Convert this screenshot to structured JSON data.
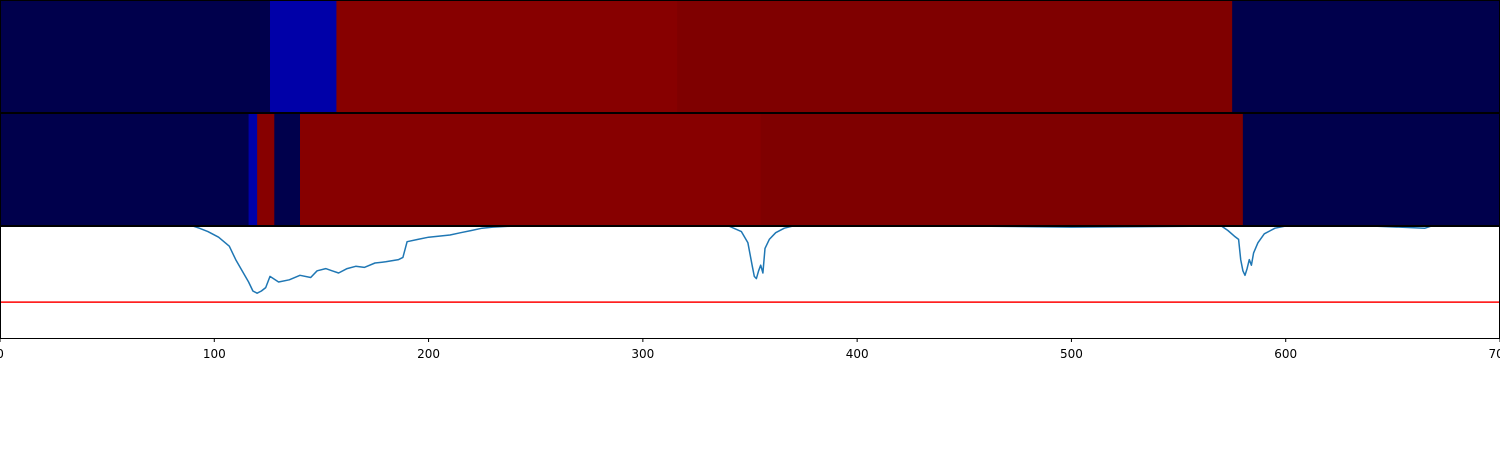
{
  "chart_data": [
    {
      "type": "heatmap",
      "x_range": [
        0,
        700
      ],
      "segments": [
        {
          "start": 0,
          "end": 126,
          "color": "#00004c"
        },
        {
          "start": 126,
          "end": 157,
          "color": "#0000a8"
        },
        {
          "start": 157,
          "end": 316,
          "color": "#870000"
        },
        {
          "start": 316,
          "end": 575,
          "color": "#7f0000"
        },
        {
          "start": 575,
          "end": 700,
          "color": "#00004c"
        }
      ]
    },
    {
      "type": "heatmap",
      "x_range": [
        0,
        700
      ],
      "segments": [
        {
          "start": 0,
          "end": 116,
          "color": "#00004c"
        },
        {
          "start": 116,
          "end": 120,
          "color": "#0000a8"
        },
        {
          "start": 120,
          "end": 128,
          "color": "#870000"
        },
        {
          "start": 128,
          "end": 140,
          "color": "#00004c"
        },
        {
          "start": 140,
          "end": 355,
          "color": "#870000"
        },
        {
          "start": 355,
          "end": 580,
          "color": "#7f0000"
        },
        {
          "start": 580,
          "end": 700,
          "color": "#00004c"
        }
      ]
    },
    {
      "type": "line",
      "xlim": [
        0,
        700
      ],
      "ylim": [
        -1.0,
        0.0
      ],
      "x_ticks": [
        0,
        100,
        200,
        300,
        400,
        500,
        600,
        700
      ],
      "series": [
        {
          "color": "#1f77b4",
          "points": [
            [
              0,
              0.0
            ],
            [
              20,
              0.0
            ],
            [
              90,
              0.0
            ],
            [
              93,
              -0.02
            ],
            [
              97,
              -0.05
            ],
            [
              102,
              -0.1
            ],
            [
              107,
              -0.18
            ],
            [
              110,
              -0.3
            ],
            [
              113,
              -0.4
            ],
            [
              116,
              -0.5
            ],
            [
              118,
              -0.58
            ],
            [
              120,
              -0.6
            ],
            [
              122,
              -0.58
            ],
            [
              124,
              -0.55
            ],
            [
              126,
              -0.45
            ],
            [
              130,
              -0.5
            ],
            [
              135,
              -0.48
            ],
            [
              140,
              -0.44
            ],
            [
              145,
              -0.46
            ],
            [
              148,
              -0.4
            ],
            [
              152,
              -0.38
            ],
            [
              155,
              -0.4
            ],
            [
              158,
              -0.42
            ],
            [
              162,
              -0.38
            ],
            [
              166,
              -0.36
            ],
            [
              170,
              -0.37
            ],
            [
              175,
              -0.33
            ],
            [
              180,
              -0.32
            ],
            [
              186,
              -0.3
            ],
            [
              188,
              -0.28
            ],
            [
              190,
              -0.14
            ],
            [
              195,
              -0.12
            ],
            [
              200,
              -0.1
            ],
            [
              205,
              -0.09
            ],
            [
              210,
              -0.08
            ],
            [
              215,
              -0.06
            ],
            [
              220,
              -0.04
            ],
            [
              225,
              -0.02
            ],
            [
              230,
              -0.01
            ],
            [
              240,
              0.0
            ],
            [
              300,
              0.0
            ],
            [
              340,
              0.0
            ],
            [
              346,
              -0.05
            ],
            [
              349,
              -0.15
            ],
            [
              351,
              -0.35
            ],
            [
              352,
              -0.45
            ],
            [
              353,
              -0.47
            ],
            [
              354,
              -0.4
            ],
            [
              355,
              -0.35
            ],
            [
              356,
              -0.42
            ],
            [
              357,
              -0.2
            ],
            [
              359,
              -0.12
            ],
            [
              362,
              -0.06
            ],
            [
              366,
              -0.02
            ],
            [
              370,
              0.0
            ],
            [
              450,
              0.0
            ],
            [
              500,
              -0.01
            ],
            [
              570,
              0.0
            ],
            [
              573,
              -0.04
            ],
            [
              576,
              -0.09
            ],
            [
              578,
              -0.12
            ],
            [
              579,
              -0.3
            ],
            [
              580,
              -0.4
            ],
            [
              581,
              -0.44
            ],
            [
              582,
              -0.38
            ],
            [
              583,
              -0.3
            ],
            [
              584,
              -0.35
            ],
            [
              585,
              -0.24
            ],
            [
              587,
              -0.15
            ],
            [
              590,
              -0.07
            ],
            [
              595,
              -0.02
            ],
            [
              600,
              0.0
            ],
            [
              640,
              0.0
            ],
            [
              665,
              -0.02
            ],
            [
              668,
              0.0
            ],
            [
              700,
              0.0
            ]
          ]
        }
      ],
      "threshold": {
        "value": -0.68,
        "color": "#ff0000"
      }
    }
  ]
}
